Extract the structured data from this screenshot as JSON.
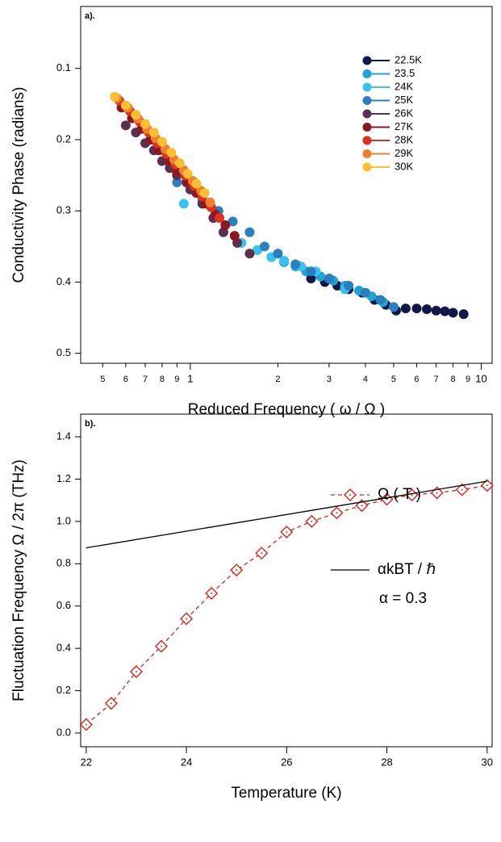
{
  "chart_data": [
    {
      "type": "scatter",
      "panel_label": "a).",
      "x_label": "Reduced Frequency ( ω / Ω )",
      "y_label": "Conductivity Phase  (radians)",
      "xscale": "log",
      "xlim": [
        0.42,
        10.9
      ],
      "ylim": [
        0.514,
        0.013
      ],
      "legend": "upper right",
      "xticks": [
        {
          "value": 0.5,
          "label": "5"
        },
        {
          "value": 0.6,
          "label": "6"
        },
        {
          "value": 0.7,
          "label": "7"
        },
        {
          "value": 0.8,
          "label": "8"
        },
        {
          "value": 0.9,
          "label": "9"
        },
        1,
        2,
        3,
        4,
        5,
        6,
        7,
        8,
        9,
        10
      ],
      "yticks": [
        0.1,
        0.2,
        0.3,
        0.4,
        0.5
      ],
      "series": [
        {
          "name": "22.5K",
          "color": "#101848",
          "x": [
            2.6,
            2.9,
            3.2,
            3.5,
            3.9,
            4.3,
            4.7,
            5.1,
            5.5,
            6.0,
            6.5,
            7.0,
            7.5,
            8.0,
            8.7
          ],
          "values": [
            0.395,
            0.4,
            0.405,
            0.41,
            0.415,
            0.425,
            0.432,
            0.44,
            0.437,
            0.437,
            0.438,
            0.44,
            0.441,
            0.443,
            0.445
          ]
        },
        {
          "name": "23.5",
          "color": "#1fa3d4",
          "x": [
            1.7,
            1.9,
            2.1,
            2.3,
            2.5,
            2.8,
            3.1,
            3.4,
            3.8,
            4.2,
            4.6
          ],
          "values": [
            0.355,
            0.365,
            0.372,
            0.378,
            0.385,
            0.392,
            0.398,
            0.405,
            0.412,
            0.42,
            0.428
          ]
        },
        {
          "name": "24K",
          "color": "#38c2f0",
          "x": [
            0.95,
            1.3,
            1.5,
            1.7,
            1.9,
            2.1,
            2.4,
            2.7,
            3.0,
            3.4
          ],
          "values": [
            0.29,
            0.33,
            0.345,
            0.355,
            0.365,
            0.37,
            0.378,
            0.385,
            0.395,
            0.41
          ]
        },
        {
          "name": "25K",
          "color": "#2a7fbf",
          "x": [
            0.9,
            1.0,
            1.1,
            1.25,
            1.4,
            1.6,
            1.8,
            2.0,
            2.3,
            2.6,
            3.0,
            3.5,
            4.0,
            4.5,
            5.0
          ],
          "values": [
            0.26,
            0.27,
            0.285,
            0.3,
            0.315,
            0.33,
            0.35,
            0.36,
            0.375,
            0.385,
            0.395,
            0.405,
            0.415,
            0.425,
            0.435
          ]
        },
        {
          "name": "26K",
          "color": "#5a3050",
          "x": [
            0.6,
            0.65,
            0.7,
            0.75,
            0.8,
            0.85,
            0.9,
            1.0,
            1.1,
            1.2,
            1.3,
            1.45,
            1.6
          ],
          "values": [
            0.18,
            0.19,
            0.205,
            0.215,
            0.23,
            0.24,
            0.25,
            0.27,
            0.29,
            0.31,
            0.33,
            0.345,
            0.36
          ]
        },
        {
          "name": "27K",
          "color": "#8a1a20",
          "x": [
            0.58,
            0.63,
            0.68,
            0.73,
            0.78,
            0.84,
            0.9,
            0.97,
            1.05,
            1.13,
            1.22,
            1.32,
            1.42
          ],
          "values": [
            0.155,
            0.17,
            0.185,
            0.2,
            0.215,
            0.23,
            0.245,
            0.26,
            0.275,
            0.29,
            0.305,
            0.32,
            0.335
          ]
        },
        {
          "name": "28K",
          "color": "#e0301e",
          "x": [
            0.57,
            0.62,
            0.67,
            0.72,
            0.77,
            0.83,
            0.89,
            0.96,
            1.03,
            1.1,
            1.18,
            1.26
          ],
          "values": [
            0.145,
            0.16,
            0.175,
            0.19,
            0.205,
            0.22,
            0.235,
            0.25,
            0.265,
            0.28,
            0.295,
            0.31
          ]
        },
        {
          "name": "29K",
          "color": "#f08030",
          "x": [
            0.56,
            0.61,
            0.66,
            0.71,
            0.76,
            0.82,
            0.88,
            0.95,
            1.02,
            1.09,
            1.17
          ],
          "values": [
            0.142,
            0.155,
            0.17,
            0.185,
            0.198,
            0.213,
            0.228,
            0.243,
            0.258,
            0.272,
            0.288
          ]
        },
        {
          "name": "30K",
          "color": "#f8c030",
          "x": [
            0.55,
            0.6,
            0.65,
            0.7,
            0.75,
            0.8,
            0.86,
            0.92,
            0.98,
            1.05,
            1.12
          ],
          "values": [
            0.14,
            0.152,
            0.165,
            0.178,
            0.19,
            0.203,
            0.218,
            0.233,
            0.248,
            0.262,
            0.275
          ]
        }
      ]
    },
    {
      "type": "line",
      "panel_label": "b).",
      "x_label": "Temperature (K)",
      "y_label": "Fluctuation Frequency Ω / 2π (THz)",
      "xlim": [
        21.89,
        30.1
      ],
      "ylim": [
        -0.065,
        1.507
      ],
      "xticks": [
        22,
        24,
        26,
        28,
        30
      ],
      "yticks": [
        {
          "value": 0,
          "label": "0.0"
        },
        0.2,
        0.4,
        0.6,
        0.8,
        {
          "value": 1,
          "label": "1.0"
        },
        1.2,
        1.4
      ],
      "annotation": "α = 0.3",
      "series": [
        {
          "name": "Ω ( T )",
          "color": "#e0201a",
          "line_style": "dashed",
          "marker": "diamond",
          "x": [
            22,
            22.5,
            23,
            23.5,
            24,
            24.5,
            25,
            25.5,
            26,
            26.5,
            27,
            27.5,
            28,
            28.5,
            29,
            29.5,
            30
          ],
          "values": [
            0.04,
            0.14,
            0.29,
            0.41,
            0.54,
            0.66,
            0.77,
            0.85,
            0.95,
            1.0,
            1.04,
            1.075,
            1.105,
            1.125,
            1.135,
            1.15,
            1.17
          ]
        },
        {
          "name": "αkBT / ℏ",
          "color": "#000000",
          "line_style": "solid",
          "x": [
            22,
            30
          ],
          "values": [
            0.875,
            1.19
          ]
        }
      ]
    }
  ]
}
